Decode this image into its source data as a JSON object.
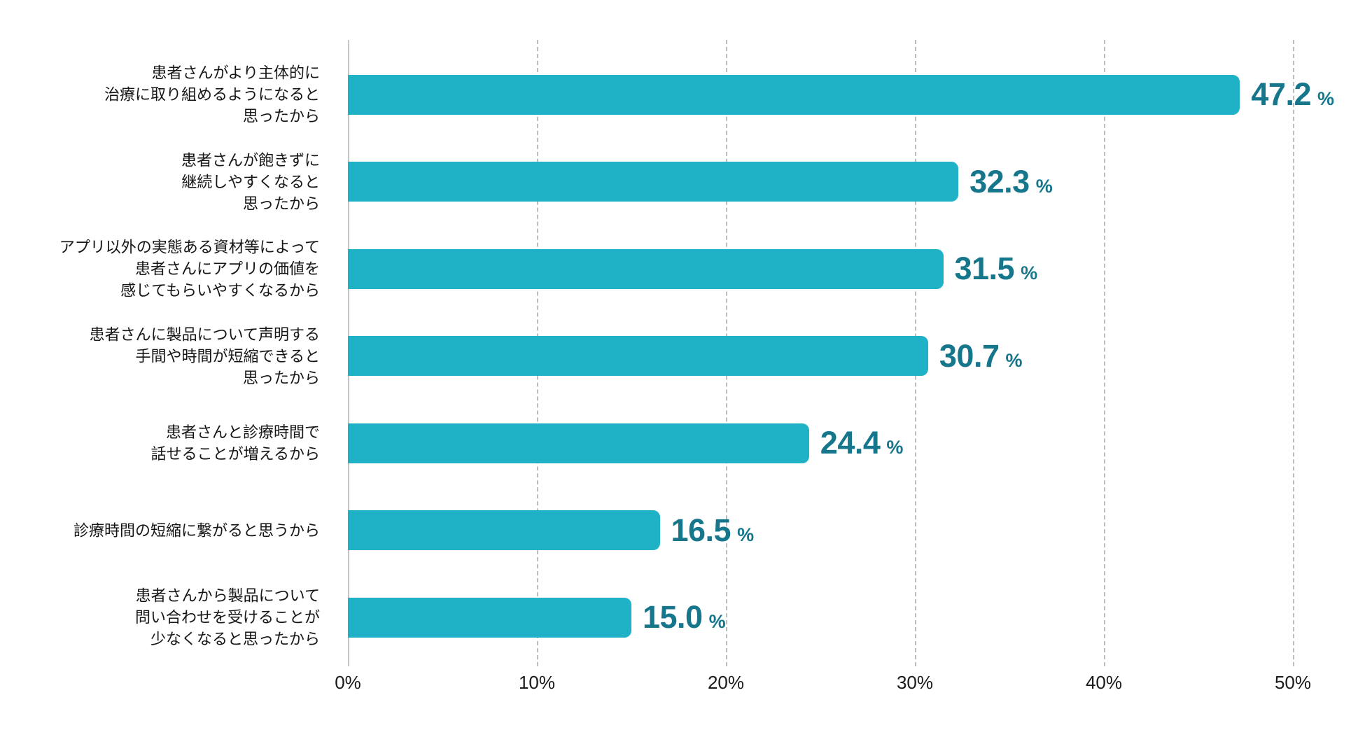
{
  "chart_data": {
    "type": "bar",
    "orientation": "horizontal",
    "title": "",
    "xlabel": "",
    "ylabel": "",
    "axis_range_pct": [
      0,
      50
    ],
    "grid": "vertical-dashed",
    "legend": "none",
    "unit": "%",
    "categories": [
      [
        "患者さんがより主体的に",
        "治療に取り組めるようになると",
        "思ったから"
      ],
      [
        "患者さんが飽きずに",
        "継続しやすくなると",
        "思ったから"
      ],
      [
        "アプリ以外の実態ある資材等によって",
        "患者さんにアプリの価値を",
        "感じてもらいやすくなるから"
      ],
      [
        "患者さんに製品について声明する",
        "手間や時間が短縮できると",
        "思ったから"
      ],
      [
        "患者さんと診療時間で",
        "話せることが増えるから"
      ],
      [
        "診療時間の短縮に繋がると思うから"
      ],
      [
        "患者さんから製品について",
        "問い合わせを受けることが",
        "少なくなると思ったから"
      ]
    ],
    "values": [
      47.2,
      32.3,
      31.5,
      30.7,
      24.4,
      16.5,
      15.0
    ],
    "value_labels": [
      "47.2",
      "32.3",
      "31.5",
      "30.7",
      "24.4",
      "16.5",
      "15.0"
    ],
    "value_unit_label": "%",
    "x_tick_labels": [
      "0%",
      "10%",
      "20%",
      "30%",
      "40%",
      "50%"
    ],
    "x_tick_values": [
      0,
      10,
      20,
      30,
      40,
      50
    ],
    "colors": {
      "bar": "#1FB1C5",
      "value_text": "#16768B",
      "gridline": "#BDBDBD",
      "axis_line": "#C6C6C6",
      "tick_text": "#1A1A1A",
      "label_text": "#161616",
      "background": "#FFFFFF"
    }
  }
}
